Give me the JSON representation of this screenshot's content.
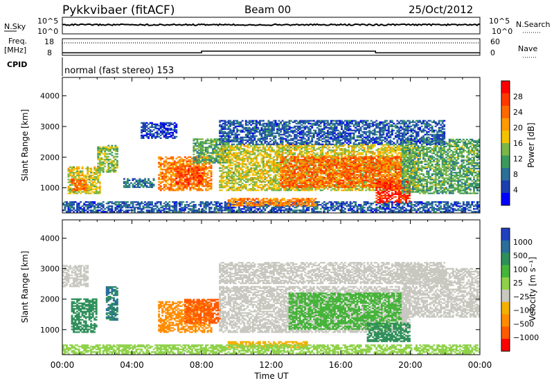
{
  "header": {
    "station": "Pykkvibaer (fitACF)",
    "beam": "Beam 00",
    "date": "25/Oct/2012"
  },
  "housekeeping": {
    "nsky_label": "N.Sky",
    "nsky_ticks": [
      "10^5",
      "10^0"
    ],
    "nsearch_label": "N.Search",
    "nsearch_ticks": [
      "10^5",
      "10^0"
    ],
    "freq_label": "Freq.",
    "freq_unit": "[MHz]",
    "freq_ticks": [
      "18",
      "8"
    ],
    "nave_label": "Nave",
    "nave_ticks": [
      "60",
      "0"
    ],
    "cpid_label": "CPID",
    "cpid_text": "normal (fast stereo) 153"
  },
  "chart_data": [
    {
      "type": "heatmap",
      "panel": "power",
      "ylabel": "Slant Range [km]",
      "yticks": [
        "4000",
        "3000",
        "2000",
        "1000"
      ],
      "ylim": [
        180,
        4600
      ],
      "xlim": [
        0,
        24
      ],
      "colorbar": {
        "label": "Power [dB]",
        "ticks": [
          "28",
          "24",
          "20",
          "16",
          "12",
          "8",
          "4"
        ],
        "colors": [
          "#ff0000",
          "#ff3800",
          "#ff6a00",
          "#ff9a00",
          "#f2c200",
          "#7ab648",
          "#3a9a5c",
          "#2a6f9a",
          "#1c3fb0",
          "#0000ff"
        ]
      },
      "regions": [
        {
          "t": [
            0.0,
            24.0
          ],
          "r": [
            200,
            520
          ],
          "v": 8
        },
        {
          "t": [
            0.3,
            2.2
          ],
          "r": [
            800,
            1700
          ],
          "v": 18
        },
        {
          "t": [
            0.5,
            1.4
          ],
          "r": [
            900,
            1300
          ],
          "v": 26
        },
        {
          "t": [
            2.0,
            3.2
          ],
          "r": [
            1500,
            2400
          ],
          "v": 16
        },
        {
          "t": [
            3.5,
            5.2
          ],
          "r": [
            1000,
            1300
          ],
          "v": 10
        },
        {
          "t": [
            5.5,
            8.5
          ],
          "r": [
            900,
            2000
          ],
          "v": 24
        },
        {
          "t": [
            6.5,
            8.0
          ],
          "r": [
            1100,
            1700
          ],
          "v": 28
        },
        {
          "t": [
            7.5,
            9.5
          ],
          "r": [
            1800,
            2600
          ],
          "v": 14
        },
        {
          "t": [
            9.0,
            20.5
          ],
          "r": [
            900,
            2400
          ],
          "v": 18
        },
        {
          "t": [
            12.5,
            19.5
          ],
          "r": [
            1000,
            2000
          ],
          "v": 26
        },
        {
          "t": [
            18.0,
            20.0
          ],
          "r": [
            500,
            1200
          ],
          "v": 30
        },
        {
          "t": [
            9.5,
            14.5
          ],
          "r": [
            400,
            650
          ],
          "v": 24
        },
        {
          "t": [
            19.5,
            24.0
          ],
          "r": [
            800,
            2600
          ],
          "v": 14
        },
        {
          "t": [
            9.0,
            22.0
          ],
          "r": [
            2400,
            3200
          ],
          "v": 8
        },
        {
          "t": [
            4.5,
            6.5
          ],
          "r": [
            2600,
            3100
          ],
          "v": 6
        }
      ]
    },
    {
      "type": "heatmap",
      "panel": "velocity",
      "ylabel": "Slant Range [km]",
      "yticks": [
        "4000",
        "3000",
        "2000",
        "1000"
      ],
      "xlabel": "Time UT",
      "xticks": [
        "00:00",
        "04:00",
        "08:00",
        "12:00",
        "16:00",
        "20:00",
        "00:00"
      ],
      "ylim": [
        180,
        4600
      ],
      "xlim": [
        0,
        24
      ],
      "colorbar": {
        "label": "Velocity [m s⁻¹]",
        "ticks": [
          "1000",
          "500",
          "100",
          "25",
          "−25",
          "−100",
          "−500",
          "−1000"
        ],
        "colors": [
          "#2040c0",
          "#2a6f9a",
          "#2f8f5a",
          "#46b43a",
          "#8fd24a",
          "#c8c8c0",
          "#f3b000",
          "#ff8c00",
          "#ff5a00",
          "#ff0000"
        ]
      },
      "regions": [
        {
          "t": [
            0.0,
            1.5
          ],
          "r": [
            2400,
            3100
          ],
          "v": 0
        },
        {
          "t": [
            0.5,
            2.0
          ],
          "r": [
            900,
            2000
          ],
          "v": 200
        },
        {
          "t": [
            2.5,
            3.2
          ],
          "r": [
            1300,
            2400
          ],
          "v": 300
        },
        {
          "t": [
            5.5,
            8.5
          ],
          "r": [
            900,
            1900
          ],
          "v": -200
        },
        {
          "t": [
            7.0,
            9.0
          ],
          "r": [
            1200,
            2000
          ],
          "v": -400
        },
        {
          "t": [
            9.0,
            20.0
          ],
          "r": [
            900,
            2400
          ],
          "v": 0
        },
        {
          "t": [
            13.0,
            19.5
          ],
          "r": [
            1000,
            2200
          ],
          "v": 80
        },
        {
          "t": [
            17.5,
            20.0
          ],
          "r": [
            600,
            1200
          ],
          "v": 150
        },
        {
          "t": [
            9.5,
            14.0
          ],
          "r": [
            400,
            600
          ],
          "v": -40
        },
        {
          "t": [
            19.5,
            24.0
          ],
          "r": [
            1400,
            3000
          ],
          "v": 0
        },
        {
          "t": [
            9.0,
            22.0
          ],
          "r": [
            2500,
            3200
          ],
          "v": 0
        },
        {
          "t": [
            0.0,
            24.0
          ],
          "r": [
            200,
            500
          ],
          "v": 40
        }
      ]
    }
  ],
  "controls_series": {
    "nsky_level": 0.55,
    "frequency_steps": [
      {
        "t": [
          0.0,
          8.0
        ],
        "mhz": 9.5
      },
      {
        "t": [
          8.0,
          18.0
        ],
        "mhz": 10.5
      },
      {
        "t": [
          18.0,
          24.0
        ],
        "mhz": 9.5
      }
    ],
    "nave_level": 0.75
  }
}
